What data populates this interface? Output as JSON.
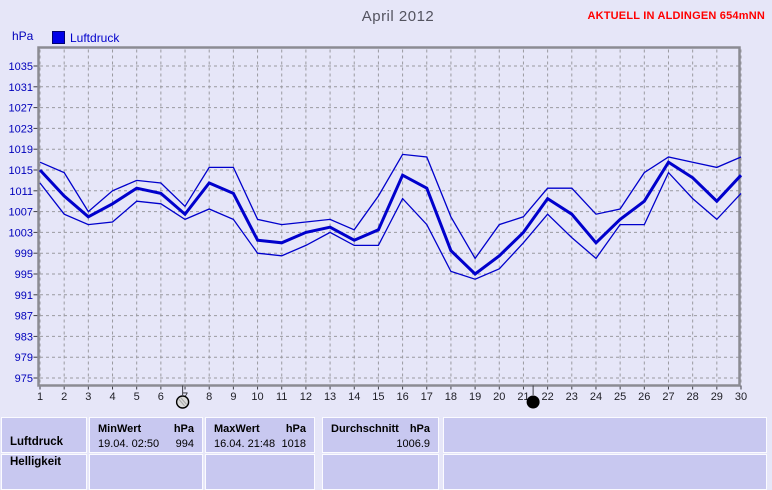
{
  "header": {
    "title": "April 2012",
    "station_banner": "AKTUELL IN ALDINGEN 654mNN",
    "y_unit": "hPa",
    "legend_label": "Luftdruck"
  },
  "colors": {
    "background": "#e6e6f8",
    "plot_frame": "#8b8b93",
    "grid": "#9a9aa0",
    "tick": "#3c3c44",
    "series_blue": "#0000cc",
    "axis_label_blue": "#0000bb",
    "x_label_color": "#1d1d24",
    "banner_red": "#ff0000",
    "table_cell": "#c8c8f0"
  },
  "chart_data": {
    "type": "line",
    "title": "April 2012",
    "ylabel": "hPa",
    "legend": [
      "Luftdruck"
    ],
    "grid": true,
    "ylim": [
      975,
      1035
    ],
    "ytick_step": 4,
    "days": [
      1,
      2,
      3,
      4,
      5,
      6,
      7,
      8,
      9,
      10,
      11,
      12,
      13,
      14,
      15,
      16,
      17,
      18,
      19,
      20,
      21,
      22,
      23,
      24,
      25,
      26,
      27,
      28,
      29,
      30
    ],
    "series": [
      {
        "name": "daily_max",
        "role": "max",
        "values": [
          1016.5,
          1014.5,
          1007,
          1011,
          1013,
          1012.5,
          1008,
          1015.5,
          1015.5,
          1005.5,
          1004.5,
          1005,
          1005.5,
          1003.5,
          1010,
          1018,
          1017.5,
          1006,
          998,
          1004.5,
          1006,
          1011.5,
          1011.5,
          1006.5,
          1007.5,
          1014.5,
          1017.5,
          1016.5,
          1015.5,
          1017.5
        ]
      },
      {
        "name": "daily_mean",
        "role": "mean",
        "values": [
          1015,
          1010,
          1006,
          1008.5,
          1011.5,
          1010.5,
          1006.5,
          1012.5,
          1010.5,
          1001.5,
          1001,
          1003,
          1004,
          1001.5,
          1003.5,
          1014,
          1011.5,
          999.5,
          995,
          998.5,
          1003,
          1009.5,
          1006.5,
          1001,
          1005.5,
          1009,
          1016.5,
          1013.5,
          1009,
          1014
        ]
      },
      {
        "name": "daily_min",
        "role": "min",
        "values": [
          1012.5,
          1006.5,
          1004.5,
          1005,
          1009,
          1008.5,
          1005.5,
          1007.5,
          1005.5,
          999,
          998.5,
          1000.5,
          1003,
          1000.5,
          1000.5,
          1009.5,
          1004.5,
          995.5,
          994,
          996,
          1001,
          1006.5,
          1002,
          998,
          1004.5,
          1004.5,
          1014.5,
          1009.5,
          1005.5,
          1010.5
        ]
      }
    ],
    "moon_markers": [
      {
        "phase": "full",
        "day": 6.9
      },
      {
        "phase": "new",
        "day": 21.4
      }
    ]
  },
  "table": {
    "rows": [
      {
        "label": "Luftdruck",
        "min": {
          "header": "MinWert",
          "unit": "hPa",
          "datetime": "19.04.  02:50",
          "value": "994"
        },
        "max": {
          "header": "MaxWert",
          "unit": "hPa",
          "datetime": "16.04.  21:48",
          "value": "1018"
        },
        "avg": {
          "header": "Durchschnitt",
          "unit": "hPa",
          "value": "1006.9"
        }
      },
      {
        "label": "Helligkeit",
        "min": {
          "header": "",
          "unit": "",
          "datetime": "",
          "value": ""
        },
        "max": {
          "header": "",
          "unit": "",
          "datetime": "",
          "value": ""
        },
        "avg": {
          "header": "",
          "unit": "",
          "value": ""
        }
      }
    ]
  }
}
